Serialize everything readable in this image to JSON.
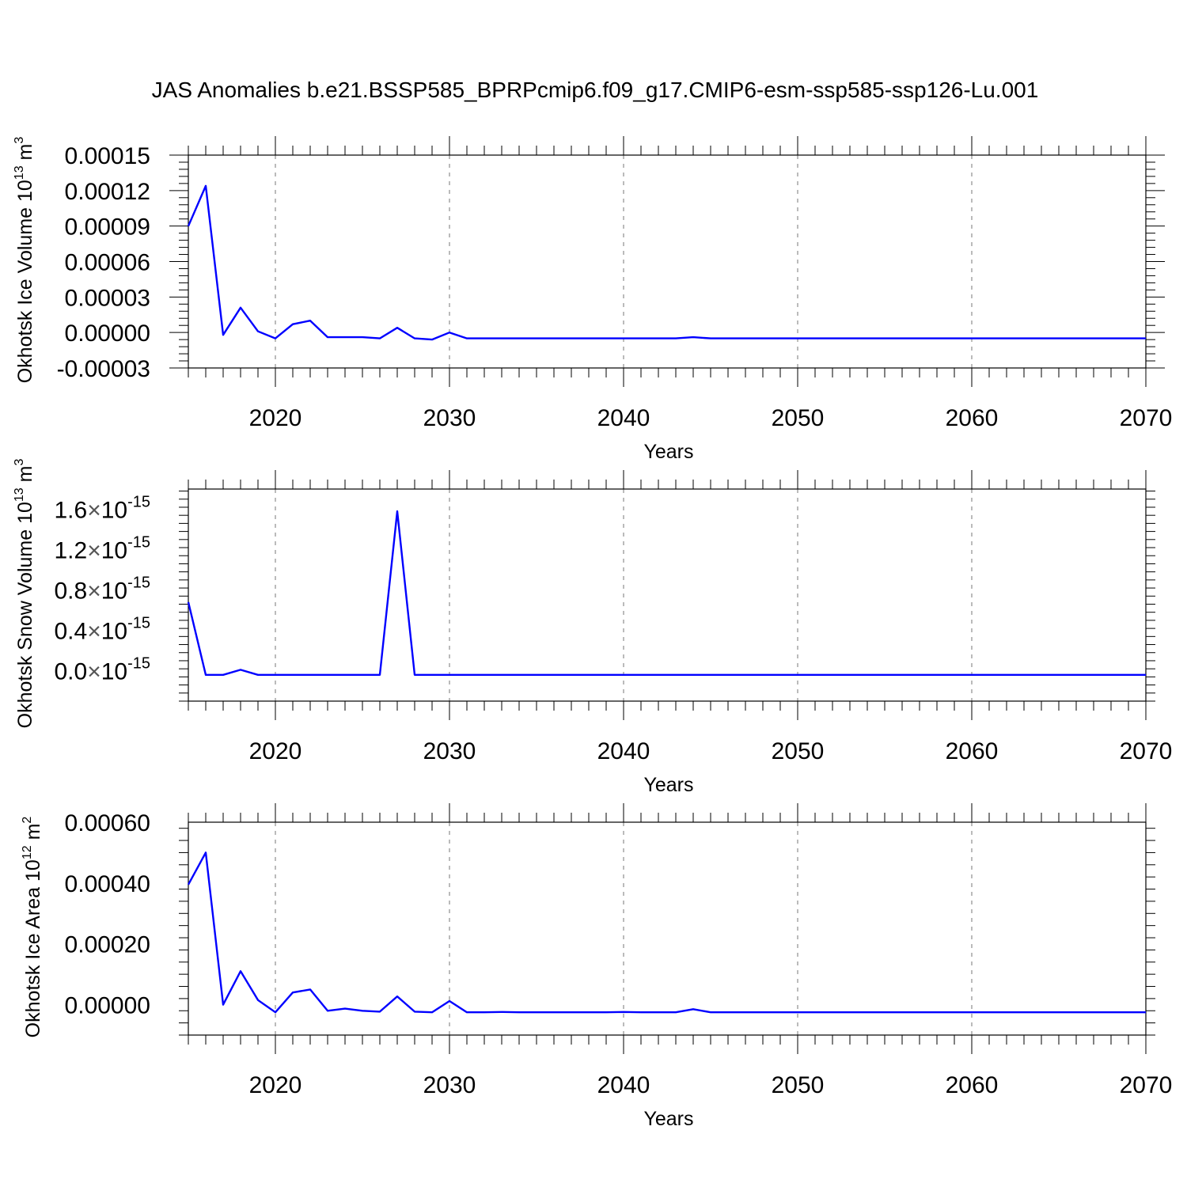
{
  "figure": {
    "title": "JAS Anomalies b.e21.BSSP585_BPRPcmip6.f09_g17.CMIP6-esm-ssp585-ssp126-Lu.001"
  },
  "colors": {
    "line": "#0000ff",
    "axis": "#000000",
    "grid": "#777777"
  },
  "chart_data": [
    {
      "type": "line",
      "ylabel": "Okhotsk Ice Volume",
      "ylabel_unit_prefix": "10",
      "ylabel_unit_exp": "13",
      "ylabel_unit_base": "m",
      "ylabel_unit_base_exp": "3",
      "xlabel": "Years",
      "xlim": [
        2015,
        2070
      ],
      "ylim": [
        -3e-05,
        0.00015
      ],
      "xticks": [
        2020,
        2030,
        2040,
        2050,
        2060,
        2070
      ],
      "xtick_labels": [
        "2020",
        "2030",
        "2040",
        "2050",
        "2060",
        "2070"
      ],
      "yticks": [
        -3e-05,
        0.0,
        3e-05,
        6e-05,
        9e-05,
        0.00012,
        0.00015
      ],
      "ytick_labels": [
        "-0.00003",
        "0.00000",
        "0.00003",
        "0.00006",
        "0.00009",
        "0.00012",
        "0.00015"
      ],
      "grid": "x-dashed",
      "x": [
        2015,
        2016,
        2017,
        2018,
        2019,
        2020,
        2021,
        2022,
        2023,
        2024,
        2025,
        2026,
        2027,
        2028,
        2029,
        2030,
        2031,
        2032,
        2033,
        2034,
        2035,
        2036,
        2037,
        2038,
        2039,
        2040,
        2041,
        2042,
        2043,
        2044,
        2045,
        2046,
        2047,
        2048,
        2049,
        2050,
        2051,
        2052,
        2053,
        2054,
        2055,
        2056,
        2057,
        2058,
        2059,
        2060,
        2061,
        2062,
        2063,
        2064,
        2065,
        2066,
        2067,
        2068,
        2069,
        2070
      ],
      "values": [
        9e-05,
        0.000124,
        -2e-06,
        2.1e-05,
        1e-06,
        -5e-06,
        7e-06,
        1e-05,
        -4e-06,
        -4e-06,
        -4e-06,
        -5e-06,
        4e-06,
        -5e-06,
        -6e-06,
        0.0,
        -5e-06,
        -5e-06,
        -5e-06,
        -5e-06,
        -5e-06,
        -5e-06,
        -5e-06,
        -5e-06,
        -5e-06,
        -5e-06,
        -5e-06,
        -5e-06,
        -5e-06,
        -4e-06,
        -5e-06,
        -5e-06,
        -5e-06,
        -5e-06,
        -5e-06,
        -5e-06,
        -5e-06,
        -5e-06,
        -5e-06,
        -5e-06,
        -5e-06,
        -5e-06,
        -5e-06,
        -5e-06,
        -5e-06,
        -5e-06,
        -5e-06,
        -5e-06,
        -5e-06,
        -5e-06,
        -5e-06,
        -5e-06,
        -5e-06,
        -5e-06,
        -5e-06,
        -5e-06
      ]
    },
    {
      "type": "line",
      "ylabel": "Okhotsk Snow Volume",
      "ylabel_unit_prefix": "10",
      "ylabel_unit_exp": "13",
      "ylabel_unit_base": "m",
      "ylabel_unit_base_exp": "3",
      "xlabel": "Years",
      "xlim": [
        2015,
        2070
      ],
      "ylim": [
        -3e-16,
        1.8e-15
      ],
      "xticks": [
        2020,
        2030,
        2040,
        2050,
        2060,
        2070
      ],
      "xtick_labels": [
        "2020",
        "2030",
        "2040",
        "2050",
        "2060",
        "2070"
      ],
      "yticks": [
        0.0,
        4e-16,
        8e-16,
        1.2e-15,
        1.6e-15
      ],
      "ytick_mantissas": [
        "0.0",
        "0.4",
        "0.8",
        "1.2",
        "1.6"
      ],
      "ytick_times": "×",
      "ytick_base": "10",
      "ytick_exp": "-15",
      "grid": "x-dashed",
      "x": [
        2015,
        2016,
        2017,
        2018,
        2019,
        2020,
        2021,
        2022,
        2023,
        2024,
        2025,
        2026,
        2027,
        2028,
        2029,
        2030,
        2031,
        2032,
        2033,
        2034,
        2035,
        2036,
        2037,
        2038,
        2039,
        2040,
        2041,
        2042,
        2043,
        2044,
        2045,
        2046,
        2047,
        2048,
        2049,
        2050,
        2051,
        2052,
        2053,
        2054,
        2055,
        2056,
        2057,
        2058,
        2059,
        2060,
        2061,
        2062,
        2063,
        2064,
        2065,
        2066,
        2067,
        2068,
        2069,
        2070
      ],
      "values": [
        6.8e-16,
        -4e-17,
        -4e-17,
        1e-17,
        -4e-17,
        -4e-17,
        -4e-17,
        -4e-17,
        -4e-17,
        -4e-17,
        -4e-17,
        -4e-17,
        1.58e-15,
        -4e-17,
        -4e-17,
        -4e-17,
        -4e-17,
        -4e-17,
        -4e-17,
        -4e-17,
        -4e-17,
        -4e-17,
        -4e-17,
        -4e-17,
        -4e-17,
        -4e-17,
        -4e-17,
        -4e-17,
        -4e-17,
        -4e-17,
        -4e-17,
        -4e-17,
        -4e-17,
        -4e-17,
        -4e-17,
        -4e-17,
        -4e-17,
        -4e-17,
        -4e-17,
        -4e-17,
        -4e-17,
        -4e-17,
        -4e-17,
        -4e-17,
        -4e-17,
        -4e-17,
        -4e-17,
        -4e-17,
        -4e-17,
        -4e-17,
        -4e-17,
        -4e-17,
        -4e-17,
        -4e-17,
        -4e-17,
        -4e-17
      ]
    },
    {
      "type": "line",
      "ylabel": "Okhotsk Ice Area",
      "ylabel_unit_prefix": "10",
      "ylabel_unit_exp": "12",
      "ylabel_unit_base": "m",
      "ylabel_unit_base_exp": "2",
      "xlabel": "Years",
      "xlim": [
        2015,
        2070
      ],
      "ylim": [
        -0.0001,
        0.0006
      ],
      "xticks": [
        2020,
        2030,
        2040,
        2050,
        2060,
        2070
      ],
      "xtick_labels": [
        "2020",
        "2030",
        "2040",
        "2050",
        "2060",
        "2070"
      ],
      "yticks": [
        0.0,
        0.0002,
        0.0004,
        0.0006
      ],
      "ytick_labels": [
        "0.00000",
        "0.00020",
        "0.00040",
        "0.00060"
      ],
      "grid": "x-dashed",
      "x": [
        2015,
        2016,
        2017,
        2018,
        2019,
        2020,
        2021,
        2022,
        2023,
        2024,
        2025,
        2026,
        2027,
        2028,
        2029,
        2030,
        2031,
        2032,
        2033,
        2034,
        2035,
        2036,
        2037,
        2038,
        2039,
        2040,
        2041,
        2042,
        2043,
        2044,
        2045,
        2046,
        2047,
        2048,
        2049,
        2050,
        2051,
        2052,
        2053,
        2054,
        2055,
        2056,
        2057,
        2058,
        2059,
        2060,
        2061,
        2062,
        2063,
        2064,
        2065,
        2066,
        2067,
        2068,
        2069,
        2070
      ],
      "values": [
        0.000395,
        0.0005,
        0.0,
        0.00011,
        1.5e-05,
        -2.5e-05,
        4e-05,
        5e-05,
        -2e-05,
        -1.3e-05,
        -2e-05,
        -2.3e-05,
        2.7e-05,
        -2.3e-05,
        -2.5e-05,
        1.2e-05,
        -2.5e-05,
        -2.5e-05,
        -2.4e-05,
        -2.5e-05,
        -2.5e-05,
        -2.5e-05,
        -2.5e-05,
        -2.5e-05,
        -2.5e-05,
        -2.4e-05,
        -2.5e-05,
        -2.5e-05,
        -2.5e-05,
        -1.5e-05,
        -2.5e-05,
        -2.5e-05,
        -2.5e-05,
        -2.5e-05,
        -2.5e-05,
        -2.5e-05,
        -2.5e-05,
        -2.5e-05,
        -2.5e-05,
        -2.5e-05,
        -2.5e-05,
        -2.5e-05,
        -2.5e-05,
        -2.5e-05,
        -2.5e-05,
        -2.5e-05,
        -2.5e-05,
        -2.5e-05,
        -2.5e-05,
        -2.5e-05,
        -2.5e-05,
        -2.5e-05,
        -2.5e-05,
        -2.5e-05,
        -2.5e-05,
        -2.5e-05
      ]
    }
  ]
}
